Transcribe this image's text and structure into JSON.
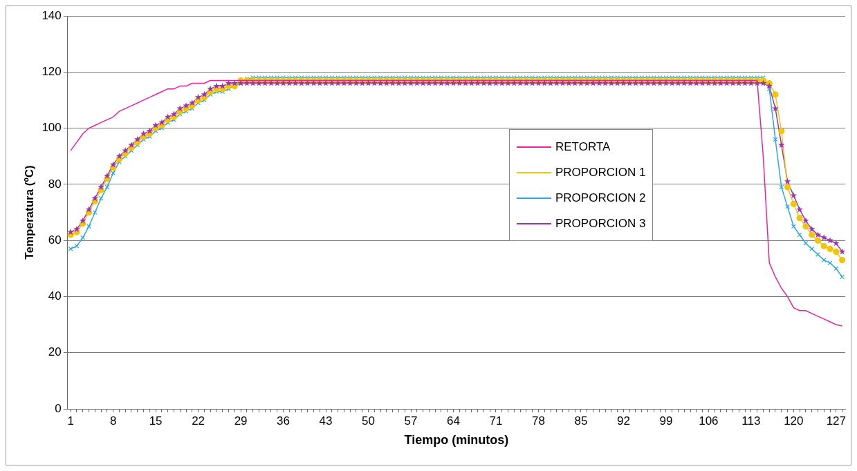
{
  "chart_data": {
    "type": "line",
    "xlabel": "Tiempo (minutos)",
    "ylabel": "Temperatura (ºC)",
    "categories": [
      "1",
      null,
      null,
      null,
      null,
      null,
      null,
      "8",
      null,
      null,
      null,
      null,
      null,
      null,
      "15",
      null,
      null,
      null,
      null,
      null,
      null,
      "22",
      null,
      null,
      null,
      null,
      null,
      null,
      "29",
      null,
      null,
      null,
      null,
      null,
      null,
      "36",
      null,
      null,
      null,
      null,
      null,
      null,
      "43",
      null,
      null,
      null,
      null,
      null,
      null,
      "50",
      null,
      null,
      null,
      null,
      null,
      null,
      "57",
      null,
      null,
      null,
      null,
      null,
      null,
      "64",
      null,
      null,
      null,
      null,
      null,
      null,
      "71",
      null,
      null,
      null,
      null,
      null,
      null,
      "78",
      null,
      null,
      null,
      null,
      null,
      null,
      "85",
      null,
      null,
      null,
      null,
      null,
      null,
      "92",
      null,
      null,
      null,
      null,
      null,
      null,
      "99",
      null,
      null,
      null,
      null,
      null,
      null,
      "106",
      null,
      null,
      null,
      null,
      null,
      null,
      "113",
      null,
      null,
      null,
      null,
      null,
      null,
      "120",
      null,
      null,
      null,
      null,
      null,
      null,
      "127",
      null
    ],
    "ylim": [
      0,
      140
    ],
    "yticks": [
      0,
      20,
      40,
      60,
      80,
      100,
      120,
      140
    ],
    "grid": "y",
    "legend": "right",
    "series": [
      {
        "name": "RETORTA",
        "color": "#f0209a",
        "marker": "none",
        "values": [
          92,
          95,
          98,
          100,
          101,
          102,
          103,
          104,
          106,
          107,
          108,
          109,
          110,
          111,
          112,
          113,
          114,
          114,
          115,
          115,
          116,
          116,
          116,
          117,
          117,
          117,
          117,
          117,
          117,
          117,
          117,
          117,
          117,
          117,
          117,
          117,
          117,
          117,
          117,
          117,
          117,
          117,
          117,
          117,
          117,
          117,
          117,
          117,
          117,
          117,
          117,
          117,
          117,
          117,
          117,
          117,
          117,
          117,
          117,
          117,
          117,
          117,
          117,
          117,
          117,
          117,
          117,
          117,
          117,
          117,
          117,
          117,
          117,
          117,
          117,
          117,
          117,
          117,
          117,
          117,
          117,
          117,
          117,
          117,
          117,
          117,
          117,
          117,
          117,
          117,
          117,
          117,
          117,
          117,
          117,
          117,
          117,
          117,
          117,
          117,
          117,
          117,
          117,
          117,
          117,
          117,
          117,
          117,
          117,
          117,
          117,
          117,
          117,
          117,
          90,
          52,
          47,
          43,
          40,
          36,
          35,
          35,
          34,
          33,
          32,
          31,
          30,
          29.5
        ]
      },
      {
        "name": "PROPORCION 1",
        "color": "#f2c40c",
        "marker": "circle",
        "values": [
          62,
          63,
          66,
          70,
          74,
          78,
          82,
          86,
          89,
          91,
          93,
          95,
          97,
          98,
          100,
          101,
          103,
          104,
          106,
          107,
          108,
          110,
          111,
          113,
          114,
          114,
          115,
          115,
          117,
          117,
          117,
          117,
          117,
          117,
          117,
          117,
          117,
          117,
          117,
          117,
          117,
          117,
          117,
          117,
          117,
          117,
          117,
          117,
          117,
          117,
          117,
          117,
          117,
          117,
          117,
          117,
          117,
          117,
          117,
          117,
          117,
          117,
          117,
          117,
          117,
          117,
          117,
          117,
          117,
          117,
          117,
          117,
          117,
          117,
          117,
          117,
          117,
          117,
          117,
          117,
          117,
          117,
          117,
          117,
          117,
          117,
          117,
          117,
          117,
          117,
          117,
          117,
          117,
          117,
          117,
          117,
          117,
          117,
          117,
          117,
          117,
          117,
          117,
          117,
          117,
          117,
          117,
          117,
          117,
          117,
          117,
          117,
          117,
          117,
          117,
          116,
          112,
          99,
          79,
          73,
          68,
          65,
          62,
          60,
          58,
          57,
          56,
          53
        ]
      },
      {
        "name": "PROPORCION 2",
        "color": "#2aa8e0",
        "marker": "cross",
        "values": [
          57,
          58,
          61,
          65,
          70,
          75,
          79,
          84,
          88,
          90,
          92,
          94,
          96,
          97,
          99,
          100,
          102,
          103,
          105,
          106,
          107,
          109,
          110,
          112,
          113,
          113,
          114,
          115,
          116,
          117.5,
          118,
          118,
          118,
          118,
          118,
          118,
          118,
          118,
          118,
          118,
          118,
          118,
          118,
          118,
          118,
          118,
          118,
          118,
          118,
          118,
          118,
          118,
          118,
          118,
          118,
          118,
          118,
          118,
          118,
          118,
          118,
          118,
          118,
          118,
          118,
          118,
          118,
          118,
          118,
          118,
          118,
          118,
          118,
          118,
          118,
          118,
          118,
          118,
          118,
          118,
          118,
          118,
          118,
          118,
          118,
          118,
          118,
          118,
          118,
          118,
          118,
          118,
          118,
          118,
          118,
          118,
          118,
          118,
          118,
          118,
          118,
          118,
          118,
          118,
          118,
          118,
          118,
          118,
          118,
          118,
          118,
          118,
          118,
          118,
          118,
          114,
          96,
          79,
          72,
          65,
          62,
          59,
          57,
          55,
          53,
          52,
          50,
          47
        ]
      },
      {
        "name": "PROPORCION 3",
        "color": "#9a35b0",
        "marker": "star",
        "values": [
          63,
          64,
          67,
          71,
          75,
          79,
          83,
          87,
          90,
          92,
          94,
          96,
          98,
          99,
          101,
          102,
          104,
          105,
          107,
          108,
          109,
          111,
          112,
          114,
          115,
          115,
          116,
          116,
          116,
          116,
          116,
          116,
          116,
          116,
          116,
          116,
          116,
          116,
          116,
          116,
          116,
          116,
          116,
          116,
          116,
          116,
          116,
          116,
          116,
          116,
          116,
          116,
          116,
          116,
          116,
          116,
          116,
          116,
          116,
          116,
          116,
          116,
          116,
          116,
          116,
          116,
          116,
          116,
          116,
          116,
          116,
          116,
          116,
          116,
          116,
          116,
          116,
          116,
          116,
          116,
          116,
          116,
          116,
          116,
          116,
          116,
          116,
          116,
          116,
          116,
          116,
          116,
          116,
          116,
          116,
          116,
          116,
          116,
          116,
          116,
          116,
          116,
          116,
          116,
          116,
          116,
          116,
          116,
          116,
          116,
          116,
          116,
          116,
          116,
          116,
          115,
          107,
          94,
          81,
          76,
          71,
          67,
          64,
          62,
          61,
          60,
          59,
          56
        ]
      }
    ]
  }
}
